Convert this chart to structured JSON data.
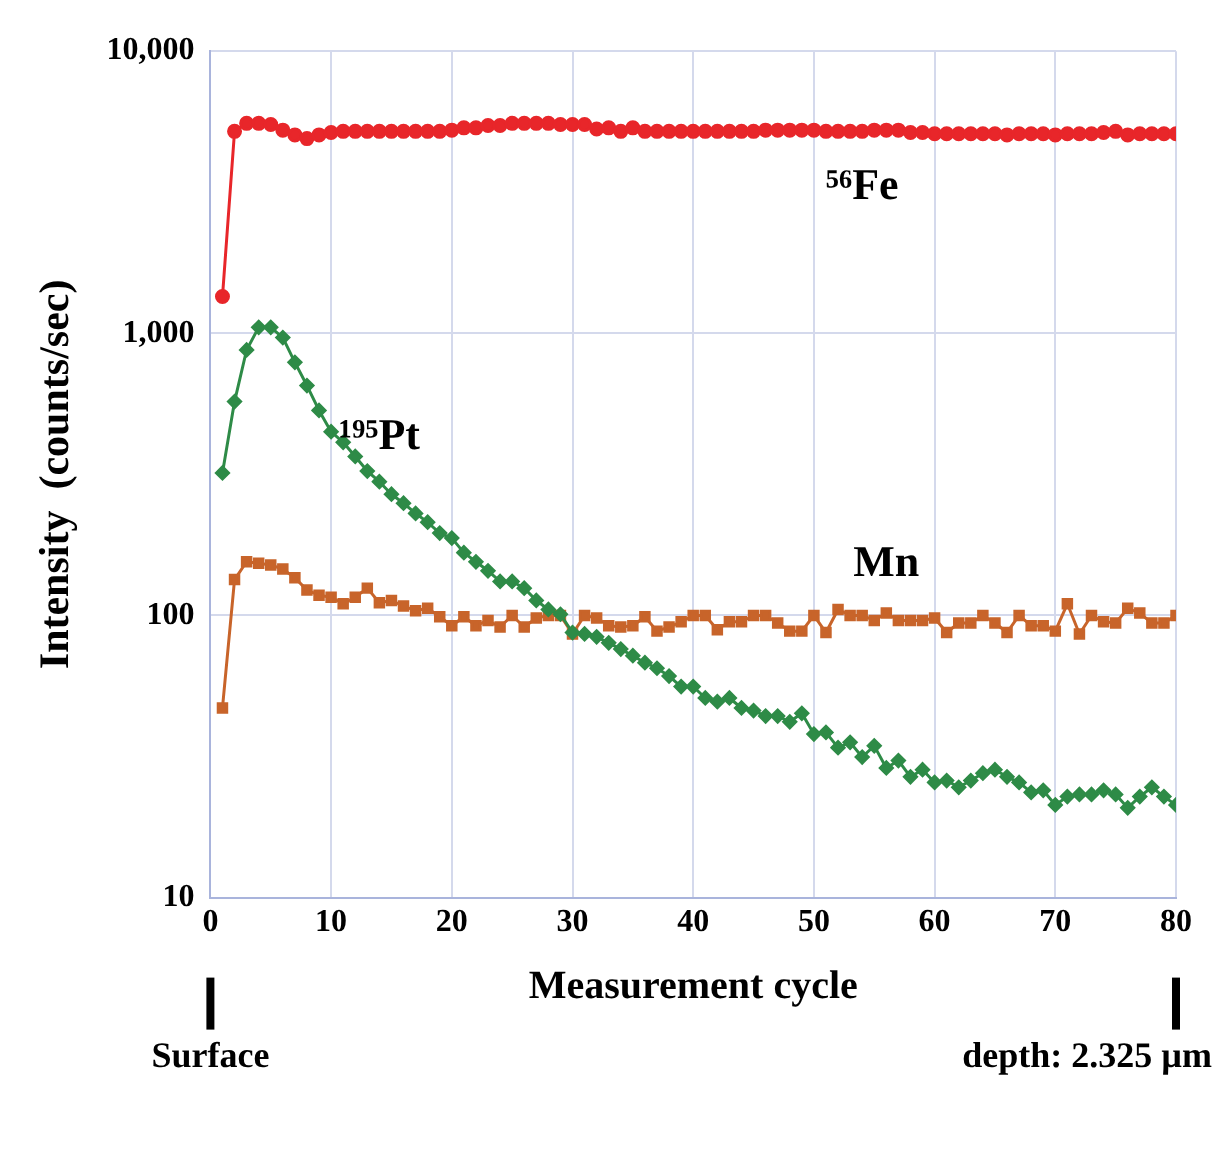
{
  "chart_data": {
    "type": "line",
    "xlabel": "Measurement cycle",
    "ylabel": "Intensity  (counts/sec)",
    "x": [
      1,
      2,
      3,
      4,
      5,
      6,
      7,
      8,
      9,
      10,
      11,
      12,
      13,
      14,
      15,
      16,
      17,
      18,
      19,
      20,
      21,
      22,
      23,
      24,
      25,
      26,
      27,
      28,
      29,
      30,
      31,
      32,
      33,
      34,
      35,
      36,
      37,
      38,
      39,
      40,
      41,
      42,
      43,
      44,
      45,
      46,
      47,
      48,
      49,
      50,
      51,
      52,
      53,
      54,
      55,
      56,
      57,
      58,
      59,
      60,
      61,
      62,
      63,
      64,
      65,
      66,
      67,
      68,
      69,
      70,
      71,
      72,
      73,
      74,
      75,
      76,
      77,
      78,
      79,
      80
    ],
    "series": [
      {
        "name": "⁵⁶Fe",
        "color": "#e8262a",
        "marker": "circle",
        "values": [
          1350,
          5200,
          5550,
          5550,
          5500,
          5250,
          5050,
          4900,
          5050,
          5150,
          5200,
          5200,
          5200,
          5200,
          5200,
          5200,
          5200,
          5200,
          5200,
          5250,
          5350,
          5350,
          5450,
          5450,
          5550,
          5550,
          5550,
          5550,
          5500,
          5500,
          5500,
          5300,
          5350,
          5200,
          5350,
          5200,
          5200,
          5200,
          5200,
          5200,
          5200,
          5200,
          5200,
          5200,
          5200,
          5250,
          5250,
          5250,
          5250,
          5250,
          5200,
          5200,
          5200,
          5200,
          5250,
          5250,
          5250,
          5150,
          5150,
          5100,
          5100,
          5100,
          5100,
          5100,
          5100,
          5050,
          5100,
          5100,
          5100,
          5050,
          5100,
          5100,
          5100,
          5150,
          5200,
          5050,
          5100,
          5100,
          5100,
          5100
        ]
      },
      {
        "name": "¹⁹⁵Pt",
        "color": "#2e8b47",
        "marker": "diamond",
        "values": [
          320,
          573,
          873,
          1050,
          1050,
          966,
          789,
          653,
          533,
          448,
          411,
          366,
          325,
          298,
          269,
          250,
          230,
          214,
          196,
          188,
          167,
          155,
          144,
          132,
          132,
          125,
          113,
          105,
          101,
          87,
          86,
          84,
          80,
          76,
          72,
          68,
          65,
          61,
          56,
          56,
          51,
          49.5,
          51,
          47,
          46,
          44,
          44,
          42,
          45,
          38,
          38.5,
          34,
          35.5,
          31.5,
          34.5,
          28.8,
          30.6,
          26.8,
          28.4,
          25.6,
          26,
          24.6,
          26,
          27.6,
          28.4,
          26.8,
          25.6,
          23.6,
          24,
          21.3,
          22.8,
          23.2,
          23.2,
          24,
          23.2,
          20.8,
          22.8,
          24.6,
          22.8,
          21.3
        ]
      },
      {
        "name": "Mn",
        "color": "#c8642a",
        "marker": "square",
        "values": [
          47,
          134,
          155,
          153,
          151,
          146,
          136,
          123,
          118,
          116,
          110,
          116,
          125,
          111,
          113,
          108,
          104,
          106,
          99,
          92,
          99,
          92,
          96,
          91,
          100,
          91,
          98,
          100,
          100,
          86,
          100,
          98,
          92,
          91,
          92,
          99,
          88,
          91,
          95,
          100,
          100,
          89,
          95,
          95,
          100,
          100,
          94,
          88,
          88,
          100,
          87,
          105,
          100,
          100,
          96,
          102,
          96,
          96,
          96,
          98,
          87,
          94,
          94,
          100,
          94,
          87,
          100,
          92,
          92,
          88,
          110,
          86,
          100,
          95,
          94,
          106,
          102,
          94,
          94,
          100
        ]
      }
    ],
    "xlim": [
      0,
      80
    ],
    "xticks": [
      0,
      10,
      20,
      30,
      40,
      50,
      60,
      70,
      80
    ],
    "ylim": [
      10,
      10000
    ],
    "yticks": [
      {
        "value": 10,
        "label": "10"
      },
      {
        "value": 100,
        "label": "100"
      },
      {
        "value": 1000,
        "label": "1,000"
      },
      {
        "value": 10000,
        "label": "10,000"
      }
    ],
    "log": "y",
    "grid": true,
    "legend": false,
    "annotations": [
      "Surface",
      "depth: 2.325 µm"
    ]
  }
}
